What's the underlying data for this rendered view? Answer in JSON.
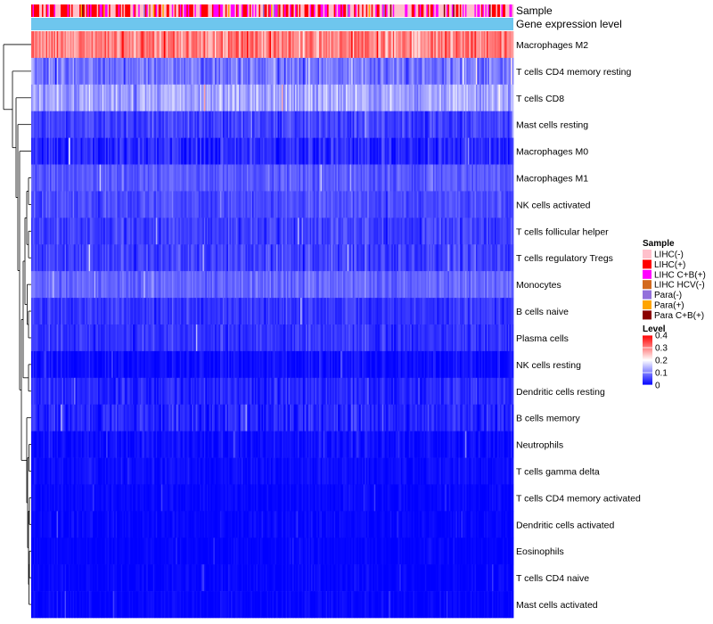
{
  "chart_data": {
    "type": "heatmap",
    "title": "",
    "annotation_tracks": [
      "Sample",
      "Gene expression level"
    ],
    "rows": [
      {
        "label": "Macrophages M2",
        "mean": 0.3,
        "spread": 0.1
      },
      {
        "label": "T cells CD4 memory resting",
        "mean": 0.09,
        "spread": 0.07
      },
      {
        "label": "T cells CD8",
        "mean": 0.13,
        "spread": 0.07
      },
      {
        "label": "Mast cells resting",
        "mean": 0.05,
        "spread": 0.05
      },
      {
        "label": "Macrophages M0",
        "mean": 0.03,
        "spread": 0.06
      },
      {
        "label": "Macrophages M1",
        "mean": 0.07,
        "spread": 0.04
      },
      {
        "label": "NK cells activated",
        "mean": 0.06,
        "spread": 0.04
      },
      {
        "label": "T cells follicular helper",
        "mean": 0.05,
        "spread": 0.05
      },
      {
        "label": "T cells regulatory  Tregs",
        "mean": 0.05,
        "spread": 0.05
      },
      {
        "label": "Monocytes",
        "mean": 0.08,
        "spread": 0.04
      },
      {
        "label": "B cells naive",
        "mean": 0.04,
        "spread": 0.04
      },
      {
        "label": "Plasma cells",
        "mean": 0.04,
        "spread": 0.04
      },
      {
        "label": "NK cells resting",
        "mean": 0.01,
        "spread": 0.03
      },
      {
        "label": "Dendritic cells resting",
        "mean": 0.03,
        "spread": 0.04
      },
      {
        "label": "B cells memory",
        "mean": 0.03,
        "spread": 0.05
      },
      {
        "label": "Neutrophils",
        "mean": 0.01,
        "spread": 0.03
      },
      {
        "label": "T cells gamma delta",
        "mean": 0.01,
        "spread": 0.02
      },
      {
        "label": "T cells CD4 memory activated",
        "mean": 0.005,
        "spread": 0.02
      },
      {
        "label": "Dendritic cells activated",
        "mean": 0.005,
        "spread": 0.02
      },
      {
        "label": "Eosinophils",
        "mean": 0.003,
        "spread": 0.015
      },
      {
        "label": "T cells CD4 naive",
        "mean": 0.004,
        "spread": 0.02
      },
      {
        "label": "Mast cells activated",
        "mean": 0.004,
        "spread": 0.02
      }
    ],
    "n_samples": 360,
    "gene_expression_color": "#6EC6EE",
    "legend_sample": {
      "title": "Sample",
      "entries": [
        {
          "label": "LIHC(-)",
          "color": "#FFC0CB"
        },
        {
          "label": "LIHC(+)",
          "color": "#FF0000"
        },
        {
          "label": "LIHC C+B(+)",
          "color": "#FF00FF"
        },
        {
          "label": "LIHC HCV(-)",
          "color": "#D2691E"
        },
        {
          "label": "Para(-)",
          "color": "#9370DB"
        },
        {
          "label": "Para(+)",
          "color": "#FFA500"
        },
        {
          "label": "Para C+B(+)",
          "color": "#8B0000"
        }
      ]
    },
    "legend_level": {
      "title": "Level",
      "ticks": [
        "0.4",
        "0.3",
        "0.2",
        "0.1",
        "0"
      ],
      "tick_values": [
        0.4,
        0.3,
        0.2,
        0.1,
        0
      ],
      "range": [
        0,
        0.4
      ],
      "colors": [
        "#0000FF",
        "#FFFFFF",
        "#FF0000"
      ]
    }
  }
}
